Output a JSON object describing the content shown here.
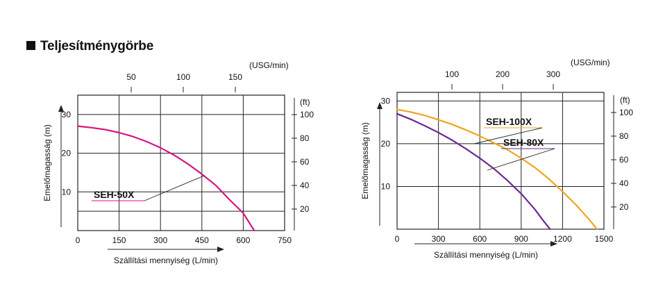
{
  "page": {
    "title": "Teljesítménygörbe",
    "icons": {
      "title_marker": "black-square-icon"
    },
    "colors": {
      "SEH-50X": "#d8157f",
      "SEH-100X": "#f0a51e",
      "SEH-80X": "#6a2a8f",
      "grid": "#222222"
    }
  },
  "chart_data": [
    {
      "type": "line",
      "xlabel": "Szállítási mennyiség (L/min)",
      "ylabel": "Emelőmagasság (m)",
      "xlim": [
        0,
        750
      ],
      "ylim": [
        0,
        35
      ],
      "x_ticks": [
        0,
        150,
        300,
        450,
        600,
        750
      ],
      "y_ticks": [
        10,
        20,
        30
      ],
      "top_axis": {
        "label": "(USG/min)",
        "ticks": [
          50,
          100,
          150
        ]
      },
      "right_axis": {
        "label": "(ft)",
        "ticks": [
          20,
          40,
          60,
          80,
          100
        ]
      },
      "grid": true,
      "series": [
        {
          "name": "SEH-50X",
          "color": "#d8157f",
          "x": [
            0,
            50,
            100,
            150,
            200,
            250,
            300,
            350,
            400,
            450,
            500,
            550,
            600,
            640
          ],
          "y": [
            27.0,
            26.6,
            26.1,
            25.3,
            24.3,
            23.0,
            21.4,
            19.5,
            17.2,
            14.6,
            11.7,
            8.0,
            4.5,
            0
          ]
        }
      ]
    },
    {
      "type": "line",
      "xlabel": "Szállítási mennyiség (L/min)",
      "ylabel": "Emelőmagasság (m)",
      "xlim": [
        0,
        1500
      ],
      "ylim": [
        0,
        32
      ],
      "x_ticks": [
        0,
        300,
        600,
        900,
        1200,
        1500
      ],
      "y_ticks": [
        10,
        20,
        30
      ],
      "top_axis": {
        "label": "(USG/min)",
        "ticks": [
          100,
          200,
          300
        ]
      },
      "right_axis": {
        "label": "(ft)",
        "ticks": [
          20,
          40,
          60,
          80,
          100
        ]
      },
      "grid": true,
      "series": [
        {
          "name": "SEH-100X",
          "color": "#f0a51e",
          "x": [
            0,
            100,
            200,
            300,
            400,
            500,
            600,
            700,
            800,
            900,
            1000,
            1100,
            1200,
            1300,
            1400,
            1450
          ],
          "y": [
            28.0,
            27.4,
            26.6,
            25.6,
            24.5,
            23.2,
            21.8,
            20.2,
            18.6,
            16.6,
            14.4,
            11.8,
            8.8,
            5.6,
            2.0,
            0
          ]
        },
        {
          "name": "SEH-80X",
          "color": "#6a2a8f",
          "x": [
            0,
            100,
            200,
            300,
            400,
            500,
            600,
            700,
            800,
            900,
            1000,
            1060,
            1110
          ],
          "y": [
            27.0,
            25.7,
            24.2,
            22.6,
            20.8,
            18.8,
            16.6,
            14.2,
            11.4,
            8.3,
            4.6,
            2.0,
            0
          ]
        }
      ]
    }
  ]
}
